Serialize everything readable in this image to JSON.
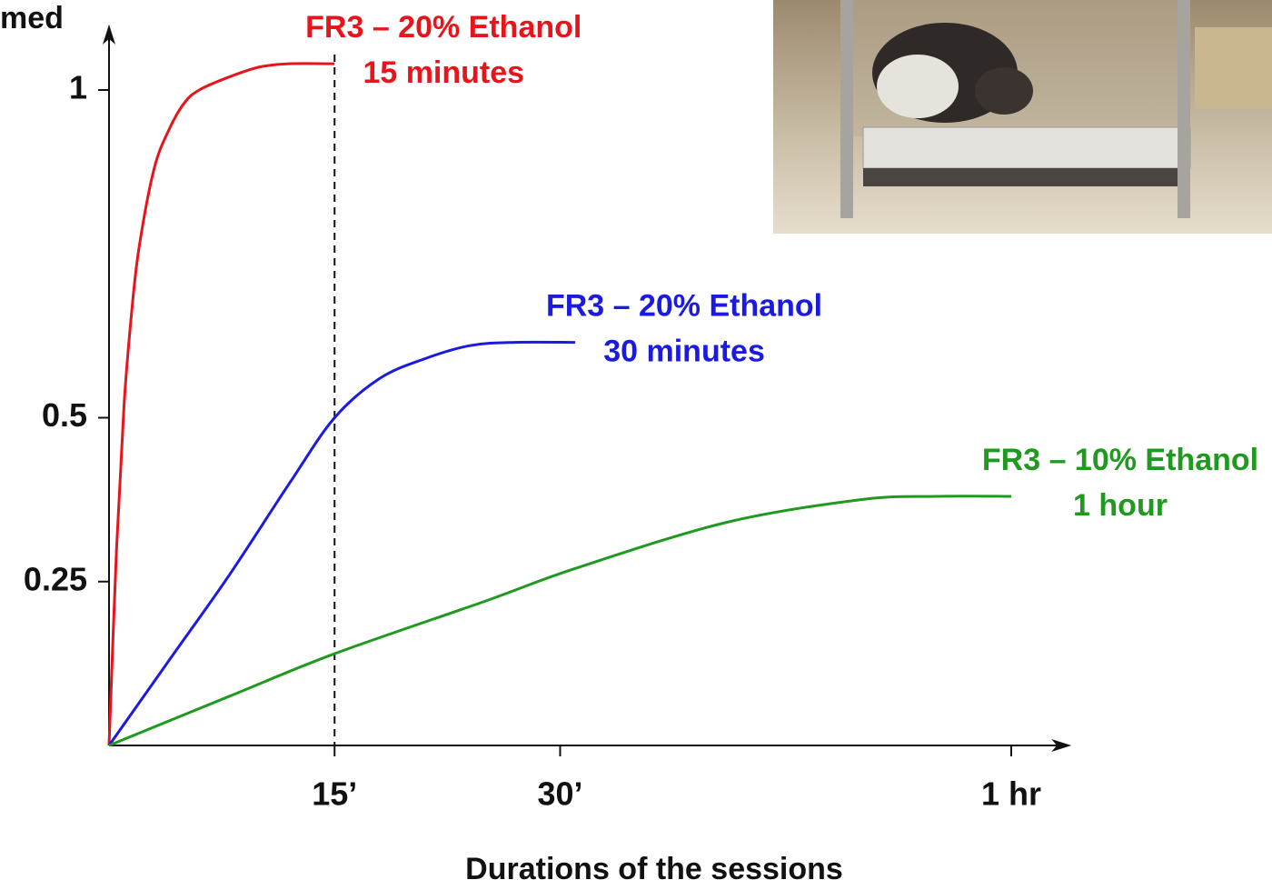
{
  "chart_data": {
    "type": "line",
    "ylabel": "med",
    "xlabel": "Durations of the sessions",
    "xlim": [
      0,
      64
    ],
    "ylim": [
      0,
      1.1
    ],
    "xticks": [
      {
        "value": 15,
        "label": "15’"
      },
      {
        "value": 30,
        "label": "30’"
      },
      {
        "value": 60,
        "label": "1 hr"
      }
    ],
    "yticks": [
      0.25,
      0.5,
      1
    ],
    "reference_x": 15,
    "series": [
      {
        "name": "FR3 – 20% Ethanol",
        "duration": "15 minutes",
        "color": "#e8141b",
        "x": [
          0,
          0.5,
          1,
          1.5,
          2,
          3,
          4,
          5,
          6,
          8,
          10,
          12,
          15
        ],
        "values": [
          0,
          0.3,
          0.52,
          0.66,
          0.76,
          0.88,
          0.94,
          0.98,
          1.0,
          1.02,
          1.035,
          1.04,
          1.04
        ]
      },
      {
        "name": "FR3 – 20% Ethanol",
        "duration": "30 minutes",
        "color": "#1b1be0",
        "x": [
          0,
          4,
          8,
          12,
          15,
          18,
          21,
          24,
          27,
          31
        ],
        "values": [
          0,
          0.13,
          0.26,
          0.4,
          0.5,
          0.56,
          0.59,
          0.61,
          0.615,
          0.615
        ]
      },
      {
        "name": "FR3 – 10% Ethanol",
        "duration": "1 hour",
        "color": "#1f9a1f",
        "x": [
          0,
          8,
          15,
          25,
          31,
          41,
          50,
          55,
          60
        ],
        "values": [
          0,
          0.075,
          0.14,
          0.22,
          0.27,
          0.34,
          0.375,
          0.38,
          0.38
        ]
      }
    ]
  }
}
